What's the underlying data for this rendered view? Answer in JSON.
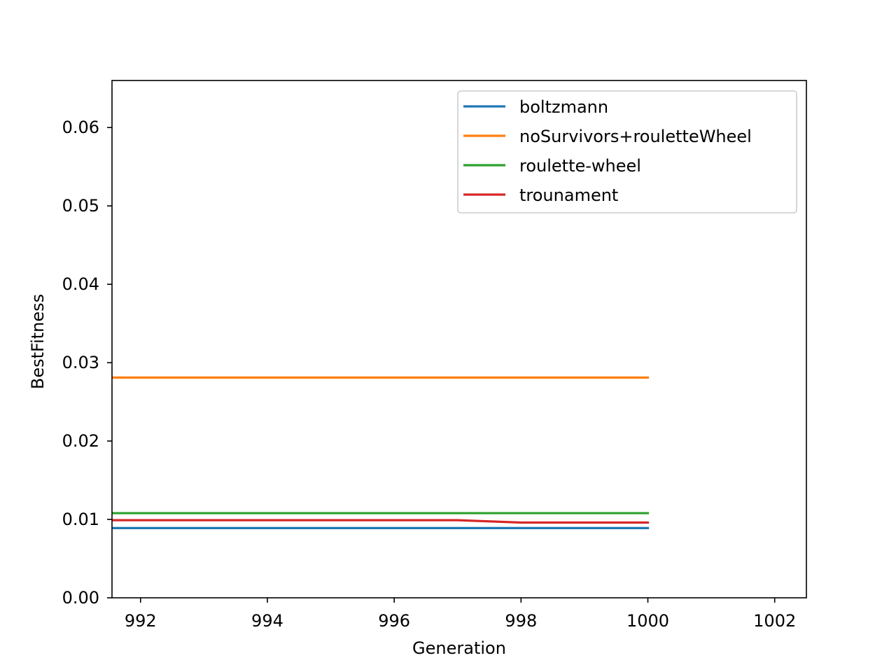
{
  "chart_data": {
    "type": "line",
    "title": "",
    "xlabel": "Generation",
    "ylabel": "BestFitness",
    "xlim": [
      991.55,
      1002.5
    ],
    "ylim": [
      0.0,
      0.066
    ],
    "xticks": [
      992,
      994,
      996,
      998,
      1000,
      1002
    ],
    "xtick_labels": [
      "992",
      "994",
      "996",
      "998",
      "1000",
      "1002"
    ],
    "yticks": [
      0.0,
      0.01,
      0.02,
      0.03,
      0.04,
      0.05,
      0.06
    ],
    "ytick_labels": [
      "0.00",
      "0.01",
      "0.02",
      "0.03",
      "0.04",
      "0.05",
      "0.06"
    ],
    "grid": false,
    "legend_position": "top-right",
    "x": [
      991,
      992,
      993,
      994,
      995,
      996,
      997,
      998,
      999,
      1000
    ],
    "series": [
      {
        "name": "boltzmann",
        "color": "#1f77b4",
        "values": [
          0.0089,
          0.0089,
          0.0089,
          0.0089,
          0.0089,
          0.0089,
          0.0089,
          0.0089,
          0.0089,
          0.0089
        ]
      },
      {
        "name": "noSurvivors+rouletteWheel",
        "color": "#ff7f0e",
        "values": [
          0.0281,
          0.0281,
          0.0281,
          0.0281,
          0.0281,
          0.0281,
          0.0281,
          0.0281,
          0.0281,
          0.0281
        ]
      },
      {
        "name": "roulette-wheel",
        "color": "#2ca02c",
        "values": [
          0.0108,
          0.0108,
          0.0108,
          0.0108,
          0.0108,
          0.0108,
          0.0108,
          0.0108,
          0.0108,
          0.0108
        ]
      },
      {
        "name": "trounament",
        "color": "#d62728",
        "values": [
          0.0099,
          0.0099,
          0.0099,
          0.0099,
          0.0099,
          0.0099,
          0.0099,
          0.0096,
          0.0096,
          0.0096
        ]
      }
    ]
  }
}
